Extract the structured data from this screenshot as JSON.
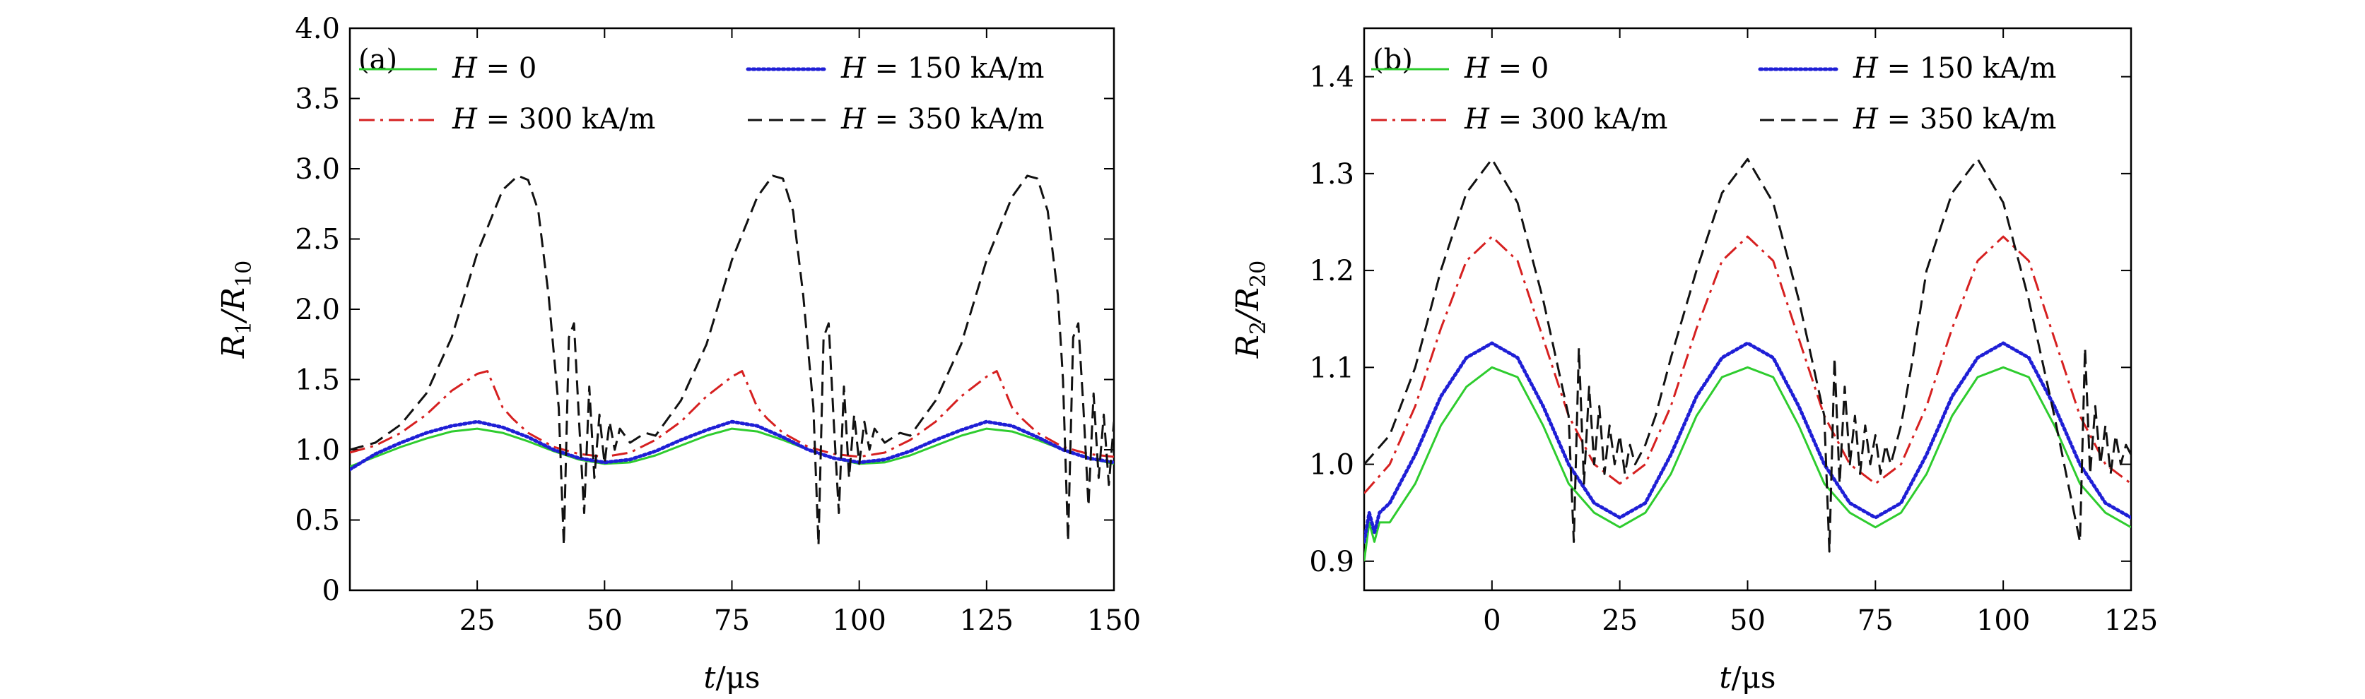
{
  "chart_data": [
    {
      "panel_label": "(a)",
      "type": "line",
      "xlabel_var": "t",
      "xlabel_unit": "/μs",
      "ylabel_main": "R",
      "ylabel_sub1": "1",
      "ylabel_slash": "/R",
      "ylabel_sub2": "10",
      "xlim": [
        0,
        150
      ],
      "ylim": [
        0,
        4.0
      ],
      "x_ticks": [
        25,
        50,
        75,
        100,
        125,
        150
      ],
      "x_tick_labels": [
        "25",
        "50",
        "75",
        "100",
        "125",
        "150"
      ],
      "y_ticks": [
        0,
        0.5,
        1.0,
        1.5,
        2.0,
        2.5,
        3.0,
        3.5,
        4.0
      ],
      "y_tick_labels": [
        "0",
        "0.5",
        "1.0",
        "1.5",
        "2.0",
        "2.5",
        "3.0",
        "3.5",
        "4.0"
      ],
      "grid": false,
      "legend_position": "top",
      "series": [
        {
          "name_var": "H",
          "name_rest": " = 0",
          "color": "#2ecc2e",
          "style": "solid",
          "x": [
            0,
            5,
            10,
            15,
            20,
            25,
            30,
            35,
            40,
            45,
            50,
            55,
            60,
            65,
            70,
            75,
            80,
            85,
            90,
            95,
            100,
            105,
            110,
            115,
            120,
            125,
            130,
            135,
            140,
            145,
            150
          ],
          "y": [
            0.88,
            0.95,
            1.02,
            1.08,
            1.13,
            1.15,
            1.12,
            1.06,
            0.99,
            0.93,
            0.9,
            0.91,
            0.96,
            1.03,
            1.1,
            1.15,
            1.13,
            1.07,
            1.0,
            0.94,
            0.9,
            0.91,
            0.96,
            1.03,
            1.1,
            1.15,
            1.13,
            1.07,
            1.0,
            0.94,
            0.9
          ]
        },
        {
          "name_var": "H",
          "name_rest": " = 150 kA/m",
          "color": "#1f1fd6",
          "style": "dotted",
          "x": [
            0,
            5,
            10,
            15,
            20,
            25,
            30,
            35,
            40,
            45,
            50,
            55,
            60,
            65,
            70,
            75,
            80,
            85,
            90,
            95,
            100,
            105,
            110,
            115,
            120,
            125,
            130,
            135,
            140,
            145,
            150
          ],
          "y": [
            0.86,
            0.97,
            1.05,
            1.12,
            1.17,
            1.2,
            1.16,
            1.09,
            1.0,
            0.94,
            0.91,
            0.93,
            0.99,
            1.07,
            1.14,
            1.2,
            1.17,
            1.09,
            1.0,
            0.94,
            0.91,
            0.93,
            0.99,
            1.07,
            1.14,
            1.2,
            1.17,
            1.09,
            1.0,
            0.94,
            0.91
          ]
        },
        {
          "name_var": "H",
          "name_rest": " = 300 kA/m",
          "color": "#d62020",
          "style": "dashdot",
          "x": [
            0,
            5,
            10,
            15,
            20,
            25,
            27,
            30,
            32,
            35,
            40,
            45,
            50,
            55,
            60,
            65,
            70,
            75,
            77,
            80,
            82,
            85,
            90,
            95,
            100,
            105,
            110,
            115,
            120,
            125,
            127,
            130,
            132,
            135,
            140,
            145,
            150
          ],
          "y": [
            0.98,
            1.03,
            1.12,
            1.25,
            1.42,
            1.54,
            1.56,
            1.3,
            1.22,
            1.12,
            1.02,
            0.97,
            0.95,
            0.98,
            1.07,
            1.2,
            1.38,
            1.52,
            1.56,
            1.3,
            1.22,
            1.12,
            1.02,
            0.97,
            0.95,
            0.98,
            1.07,
            1.2,
            1.38,
            1.52,
            1.56,
            1.3,
            1.22,
            1.12,
            1.02,
            0.97,
            0.95
          ]
        },
        {
          "name_var": "H",
          "name_rest": " = 350 kA/m",
          "color": "#111111",
          "style": "dashed",
          "x": [
            0,
            5,
            10,
            15,
            20,
            25,
            30,
            33,
            35,
            37,
            39,
            41,
            42,
            43,
            44,
            45,
            46,
            47,
            48,
            49,
            50,
            51,
            52,
            53,
            55,
            58,
            60,
            65,
            70,
            75,
            80,
            83,
            85,
            87,
            89,
            91,
            92,
            93,
            94,
            95,
            96,
            97,
            98,
            99,
            100,
            101,
            102,
            103,
            105,
            108,
            110,
            115,
            120,
            125,
            130,
            133,
            135,
            137,
            139,
            140,
            141,
            142,
            143,
            144,
            145,
            146,
            147,
            148,
            149,
            150
          ],
          "y": [
            1.0,
            1.05,
            1.18,
            1.4,
            1.8,
            2.4,
            2.85,
            2.95,
            2.92,
            2.7,
            2.1,
            1.3,
            0.32,
            1.8,
            1.9,
            1.2,
            0.55,
            1.45,
            0.8,
            1.25,
            0.9,
            1.2,
            1.0,
            1.15,
            1.05,
            1.12,
            1.1,
            1.35,
            1.75,
            2.35,
            2.8,
            2.95,
            2.93,
            2.7,
            2.1,
            1.3,
            0.32,
            1.8,
            1.9,
            1.2,
            0.55,
            1.45,
            0.8,
            1.25,
            0.9,
            1.2,
            1.0,
            1.15,
            1.05,
            1.12,
            1.1,
            1.35,
            1.75,
            2.35,
            2.8,
            2.95,
            2.93,
            2.7,
            2.1,
            1.5,
            0.35,
            1.8,
            1.9,
            1.3,
            0.6,
            1.4,
            0.8,
            1.25,
            0.75,
            1.2
          ]
        }
      ]
    },
    {
      "panel_label": "(b)",
      "type": "line",
      "xlabel_var": "t",
      "xlabel_unit": "/μs",
      "ylabel_main": "R",
      "ylabel_sub1": "2",
      "ylabel_slash": "/R",
      "ylabel_sub2": "20",
      "xlim": [
        -25,
        125
      ],
      "ylim": [
        0.87,
        1.45
      ],
      "x_ticks": [
        0,
        25,
        50,
        75,
        100,
        125
      ],
      "x_tick_labels": [
        "0",
        "25",
        "50",
        "75",
        "100",
        "125"
      ],
      "y_ticks": [
        0.9,
        1.0,
        1.1,
        1.2,
        1.3,
        1.4
      ],
      "y_tick_labels": [
        "0.9",
        "1.0",
        "1.1",
        "1.2",
        "1.3",
        "1.4"
      ],
      "grid": false,
      "legend_position": "top",
      "series": [
        {
          "name_var": "H",
          "name_rest": " = 0",
          "color": "#2ecc2e",
          "style": "solid",
          "x": [
            -25,
            -24,
            -23,
            -22,
            -20,
            -15,
            -10,
            -5,
            0,
            5,
            10,
            15,
            20,
            25,
            30,
            35,
            40,
            45,
            50,
            55,
            60,
            65,
            70,
            75,
            80,
            85,
            90,
            95,
            100,
            105,
            110,
            115,
            120,
            125
          ],
          "y": [
            0.9,
            0.94,
            0.92,
            0.94,
            0.94,
            0.98,
            1.04,
            1.08,
            1.1,
            1.09,
            1.04,
            0.98,
            0.95,
            0.935,
            0.95,
            0.99,
            1.05,
            1.09,
            1.1,
            1.09,
            1.04,
            0.98,
            0.95,
            0.935,
            0.95,
            0.99,
            1.05,
            1.09,
            1.1,
            1.09,
            1.04,
            0.98,
            0.95,
            0.935
          ]
        },
        {
          "name_var": "H",
          "name_rest": " = 150 kA/m",
          "color": "#1f1fd6",
          "style": "dotted",
          "x": [
            -25,
            -24,
            -23,
            -22,
            -20,
            -15,
            -10,
            -5,
            0,
            5,
            10,
            15,
            20,
            25,
            30,
            35,
            40,
            45,
            50,
            55,
            60,
            65,
            70,
            75,
            80,
            85,
            90,
            95,
            100,
            105,
            110,
            115,
            120,
            125
          ],
          "y": [
            0.92,
            0.95,
            0.93,
            0.95,
            0.96,
            1.01,
            1.07,
            1.11,
            1.125,
            1.11,
            1.06,
            1.0,
            0.96,
            0.945,
            0.96,
            1.01,
            1.07,
            1.11,
            1.125,
            1.11,
            1.06,
            1.0,
            0.96,
            0.945,
            0.96,
            1.01,
            1.07,
            1.11,
            1.125,
            1.11,
            1.06,
            1.0,
            0.96,
            0.945
          ]
        },
        {
          "name_var": "H",
          "name_rest": " = 300 kA/m",
          "color": "#d62020",
          "style": "dashdot",
          "x": [
            -25,
            -20,
            -15,
            -10,
            -5,
            0,
            5,
            10,
            15,
            20,
            25,
            30,
            35,
            40,
            45,
            50,
            55,
            60,
            65,
            70,
            75,
            80,
            85,
            90,
            95,
            100,
            105,
            110,
            115,
            120,
            125
          ],
          "y": [
            0.97,
            1.0,
            1.06,
            1.14,
            1.21,
            1.235,
            1.21,
            1.13,
            1.05,
            1.0,
            0.98,
            1.0,
            1.06,
            1.14,
            1.21,
            1.235,
            1.21,
            1.13,
            1.05,
            1.0,
            0.98,
            1.0,
            1.06,
            1.14,
            1.21,
            1.235,
            1.21,
            1.13,
            1.05,
            1.0,
            0.98
          ]
        },
        {
          "name_var": "H",
          "name_rest": " = 350 kA/m",
          "color": "#111111",
          "style": "dashed",
          "x": [
            -25,
            -20,
            -15,
            -10,
            -5,
            0,
            5,
            10,
            15,
            16,
            17,
            18,
            19,
            20,
            21,
            22,
            23,
            24,
            25,
            26,
            27,
            28,
            29,
            30,
            32,
            35,
            40,
            45,
            50,
            55,
            60,
            65,
            66,
            67,
            68,
            69,
            70,
            71,
            72,
            73,
            74,
            75,
            76,
            77,
            78,
            79,
            80,
            82,
            85,
            90,
            95,
            100,
            105,
            110,
            115,
            116,
            117,
            118,
            119,
            120,
            121,
            122,
            123,
            124,
            125
          ],
          "y": [
            1.0,
            1.03,
            1.1,
            1.2,
            1.28,
            1.315,
            1.27,
            1.17,
            1.05,
            0.92,
            1.12,
            0.98,
            1.08,
            1.0,
            1.06,
            0.99,
            1.04,
            1.0,
            1.03,
            0.99,
            1.02,
            1.0,
            1.01,
            1.02,
            1.05,
            1.11,
            1.2,
            1.28,
            1.315,
            1.27,
            1.17,
            1.05,
            0.91,
            1.11,
            0.98,
            1.08,
            1.0,
            1.05,
            0.99,
            1.04,
            1.0,
            1.03,
            0.99,
            1.02,
            1.0,
            1.02,
            1.04,
            1.1,
            1.2,
            1.28,
            1.315,
            1.27,
            1.17,
            1.05,
            0.92,
            1.12,
            0.99,
            1.06,
            1.0,
            1.04,
            0.99,
            1.03,
            1.0,
            1.02,
            1.01
          ]
        }
      ]
    }
  ]
}
